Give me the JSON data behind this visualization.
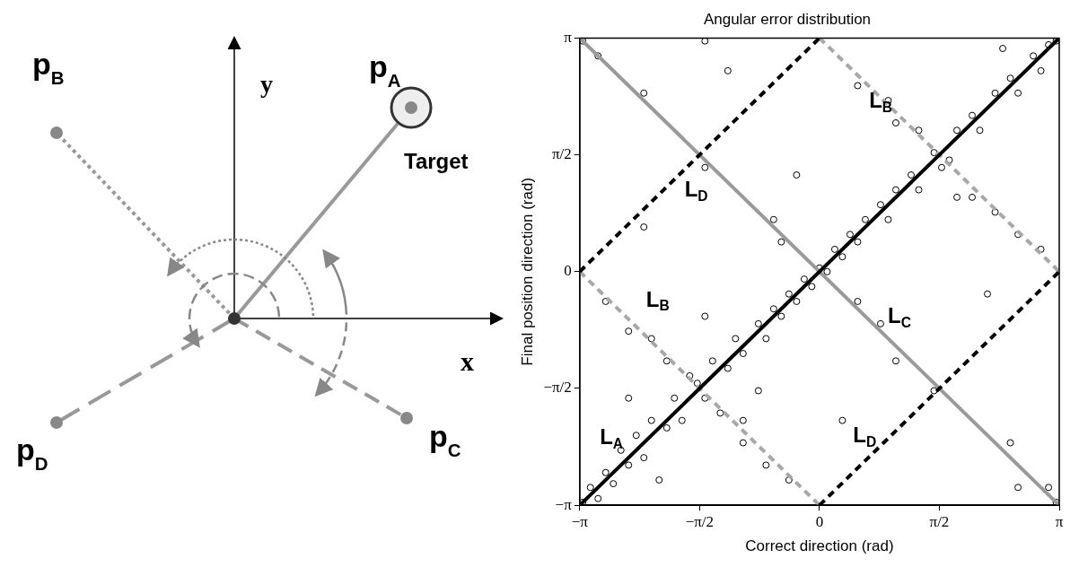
{
  "chart_data": [
    {
      "type": "other",
      "annotations": [
        "p$_{B}$",
        "y",
        "p$_{A}$",
        "Target",
        "x",
        "p$_{D}$",
        "p$_{C}$"
      ]
    },
    {
      "type": "scatter",
      "title": "Angular error distribution",
      "xlabel": "Correct direction (rad)",
      "ylabel": "Final position direction (rad)",
      "xlim": [
        -3.14,
        3.14
      ],
      "ylim": [
        -3.14,
        3.14
      ],
      "xticks": [
        {
          "value": -3.14,
          "label": "−π"
        },
        {
          "value": -1.57,
          "label": "−π/2"
        },
        0,
        {
          "value": 1.57,
          "label": "π/2"
        },
        {
          "value": 3.14,
          "label": "π"
        }
      ],
      "yticks": [
        {
          "value": -3.14,
          "label": "−π"
        },
        {
          "value": -1.57,
          "label": "−π/2"
        },
        0,
        {
          "value": 1.57,
          "label": "π/2"
        },
        {
          "value": 3.14,
          "label": "π"
        }
      ],
      "grid": false,
      "series": [
        {
          "type": "scatter",
          "color": "#000000",
          "marker": "circle",
          "x": [
            -3.1,
            -3.0,
            -2.9,
            -2.8,
            -2.7,
            -2.6,
            -2.5,
            -2.4,
            -2.3,
            -2.2,
            -2.0,
            -1.9,
            -1.8,
            -1.6,
            -1.5,
            -1.4,
            -1.2,
            -1.1,
            -1.0,
            -0.8,
            -0.7,
            -0.6,
            -0.5,
            -0.4,
            -0.3,
            -0.2,
            -0.1,
            0,
            0.1,
            0.2,
            0.3,
            0.4,
            0.5,
            0.6,
            0.8,
            0.9,
            1.0,
            1.2,
            1.3,
            1.5,
            1.6,
            1.8,
            2.0,
            2.1,
            2.3,
            2.5,
            2.6,
            2.8,
            2.9,
            3.0,
            3.1,
            -2.5,
            -2.1,
            -1.5,
            -1.0,
            -0.5,
            0.5,
            1.0,
            1.8,
            2.4,
            -2.8,
            -2.5,
            -2.2,
            -2.0,
            -1.7,
            -1.3,
            -1.0,
            -0.7,
            -0.4,
            0.5,
            0.9,
            1.3,
            1.7,
            2.0,
            2.3,
            2.6,
            2.9,
            -2.9,
            -2.3,
            -1.5,
            -0.6,
            0.8,
            1.5,
            2.5,
            3.0,
            3.1,
            -3.1,
            -1.2,
            -2.3,
            -0.8,
            0.3,
            1.0,
            2.2,
            -0.3,
            2.6,
            -1.5
          ],
          "values": [
            -3.1,
            -2.9,
            -3.05,
            -2.7,
            -2.85,
            -2.4,
            -2.6,
            -2.2,
            -2.5,
            -2.0,
            -2.1,
            -1.7,
            -2.0,
            -1.5,
            -1.7,
            -1.2,
            -1.3,
            -0.9,
            -1.1,
            -0.7,
            -0.9,
            -0.5,
            -0.6,
            -0.3,
            -0.4,
            -0.1,
            -0.2,
            0.05,
            0,
            0.3,
            0.2,
            0.5,
            0.4,
            0.7,
            0.9,
            0.7,
            1.1,
            1.3,
            1.1,
            1.6,
            1.4,
            1.9,
            2.1,
            1.9,
            2.4,
            2.6,
            2.4,
            2.9,
            2.7,
            3.05,
            3.1,
            -1.7,
            -2.8,
            -0.6,
            -2.0,
            0.4,
            -0.4,
            2.0,
            1.0,
            3.0,
            -0.4,
            -0.8,
            -0.9,
            -1.2,
            -1.4,
            -1.9,
            -2.3,
            -2.6,
            -2.8,
            2.5,
            2.3,
            1.9,
            1.5,
            1.0,
            0.8,
            0.5,
            0.3,
            2.9,
            2.4,
            1.4,
            0.7,
            -0.7,
            -1.6,
            -2.3,
            -2.9,
            -3.1,
            3.1,
            2.7,
            0.6,
            -1.6,
            -2.0,
            -1.2,
            -0.3,
            1.3,
            -2.9,
            3.1
          ]
        },
        {
          "type": "line",
          "name": "L$_{C}$",
          "color": "#9a9a9a",
          "line_style": "solid",
          "marker": "none",
          "x": [
            -3.14,
            3.14
          ],
          "values": [
            3.14,
            -3.14
          ]
        },
        {
          "type": "line",
          "name": "L$_{B}$",
          "color": "#a8a8a8",
          "line_style": "dashed",
          "marker": "none",
          "x": [
            0,
            3.14
          ],
          "values": [
            3.14,
            0
          ]
        },
        {
          "type": "line",
          "name": "L$_{B}$",
          "color": "#a8a8a8",
          "line_style": "dashed",
          "marker": "none",
          "x": [
            -3.14,
            0
          ],
          "values": [
            0,
            -3.14
          ]
        },
        {
          "type": "line",
          "name": "L$_{D}$",
          "color": "#000000",
          "line_style": "dashed",
          "marker": "none",
          "x": [
            -3.14,
            0
          ],
          "values": [
            0,
            3.14
          ]
        },
        {
          "type": "line",
          "name": "L$_{D}$",
          "color": "#000000",
          "line_style": "dashed",
          "marker": "none",
          "x": [
            0,
            3.14
          ],
          "values": [
            -3.14,
            0
          ]
        },
        {
          "type": "line",
          "name": "L$_{A}$",
          "color": "#000000",
          "line_style": "solid",
          "marker": "none",
          "x": [
            -3.14,
            3.14
          ],
          "values": [
            -3.14,
            3.14
          ]
        }
      ]
    }
  ]
}
